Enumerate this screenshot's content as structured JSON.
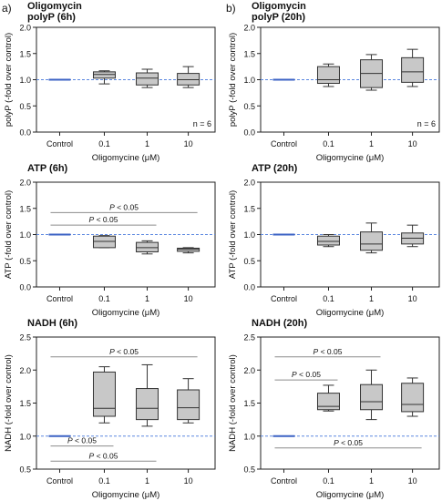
{
  "panel_letters": [
    "a)",
    "b)"
  ],
  "chart_data": [
    {
      "type": "box",
      "title_lines": [
        "Oligomycin",
        "polyP (6h)"
      ],
      "xlabel": "Oligomycine (μM)",
      "ylabel": "polyP (-fold over control)",
      "categories": [
        "Control",
        "0.1",
        "1",
        "10"
      ],
      "ylim": [
        0,
        2.0
      ],
      "yticks": [
        "0.0",
        "0.5",
        "1.0",
        "1.5",
        "2.0"
      ],
      "reference_line": 1.0,
      "annotation": "n = 6",
      "boxes": [
        {
          "category": "Control",
          "min": 1.0,
          "q1": 1.0,
          "median": 1.0,
          "q3": 1.0,
          "max": 1.0
        },
        {
          "category": "0.1",
          "min": 0.92,
          "q1": 1.03,
          "median": 1.1,
          "q3": 1.15,
          "max": 1.17
        },
        {
          "category": "1",
          "min": 0.85,
          "q1": 0.9,
          "median": 1.03,
          "q3": 1.13,
          "max": 1.2
        },
        {
          "category": "10",
          "min": 0.85,
          "q1": 0.9,
          "median": 1.0,
          "q3": 1.12,
          "max": 1.25
        }
      ],
      "significance": []
    },
    {
      "type": "box",
      "title_lines": [
        "Oligomycin",
        "polyP  (20h)"
      ],
      "xlabel": "Oligomycine (μM)",
      "ylabel": "polyP (-fold over control)",
      "categories": [
        "Control",
        "0.1",
        "1",
        "10"
      ],
      "ylim": [
        0,
        2.0
      ],
      "yticks": [
        "0.0",
        "0.5",
        "1.0",
        "1.5",
        "2.0"
      ],
      "reference_line": 1.0,
      "annotation": "n = 6",
      "boxes": [
        {
          "category": "Control",
          "min": 1.0,
          "q1": 1.0,
          "median": 1.0,
          "q3": 1.0,
          "max": 1.0
        },
        {
          "category": "0.1",
          "min": 0.87,
          "q1": 0.93,
          "median": 1.0,
          "q3": 1.25,
          "max": 1.3
        },
        {
          "category": "1",
          "min": 0.8,
          "q1": 0.85,
          "median": 1.12,
          "q3": 1.38,
          "max": 1.48
        },
        {
          "category": "10",
          "min": 0.87,
          "q1": 0.95,
          "median": 1.15,
          "q3": 1.42,
          "max": 1.58
        }
      ],
      "significance": []
    },
    {
      "type": "box",
      "title_lines": [
        "ATP (6h)"
      ],
      "xlabel": "Oligomycine (μM)",
      "ylabel": "ATP (-fold over control)",
      "categories": [
        "Control",
        "0.1",
        "1",
        "10"
      ],
      "ylim": [
        0,
        2.0
      ],
      "yticks": [
        "0.0",
        "0.5",
        "1.0",
        "1.5",
        "2.0"
      ],
      "reference_line": 1.0,
      "annotation": "",
      "boxes": [
        {
          "category": "Control",
          "min": 1.0,
          "q1": 1.0,
          "median": 1.0,
          "q3": 1.0,
          "max": 1.0
        },
        {
          "category": "0.1",
          "min": 0.75,
          "q1": 0.75,
          "median": 0.87,
          "q3": 0.97,
          "max": 0.98
        },
        {
          "category": "1",
          "min": 0.63,
          "q1": 0.67,
          "median": 0.75,
          "q3": 0.85,
          "max": 0.88
        },
        {
          "category": "10",
          "min": 0.65,
          "q1": 0.68,
          "median": 0.72,
          "q3": 0.74,
          "max": 0.75
        }
      ],
      "significance": [
        {
          "from": "Control",
          "to": "10",
          "y": 1.42,
          "label": "P < 0.05"
        },
        {
          "from": "Control",
          "to": "1",
          "y": 1.18,
          "label": "P < 0.05"
        }
      ]
    },
    {
      "type": "box",
      "title_lines": [
        "ATP (20h)"
      ],
      "xlabel": "Oligomycine (μM)",
      "ylabel": "ATP (-fold over control)",
      "categories": [
        "Control",
        "0.1",
        "1",
        "10"
      ],
      "ylim": [
        0,
        2.0
      ],
      "yticks": [
        "0.0",
        "0.5",
        "1.0",
        "1.5",
        "2.0"
      ],
      "reference_line": 1.0,
      "annotation": "",
      "boxes": [
        {
          "category": "Control",
          "min": 1.0,
          "q1": 1.0,
          "median": 1.0,
          "q3": 1.0,
          "max": 1.0
        },
        {
          "category": "0.1",
          "min": 0.77,
          "q1": 0.8,
          "median": 0.87,
          "q3": 0.97,
          "max": 1.0
        },
        {
          "category": "1",
          "min": 0.65,
          "q1": 0.7,
          "median": 0.82,
          "q3": 1.05,
          "max": 1.22
        },
        {
          "category": "10",
          "min": 0.77,
          "q1": 0.82,
          "median": 0.93,
          "q3": 1.03,
          "max": 1.18
        }
      ],
      "significance": []
    },
    {
      "type": "box",
      "title_lines": [
        "NADH (6h)"
      ],
      "xlabel": "Oligomycine (μM)",
      "ylabel": "NADH (-fold over control)",
      "categories": [
        "Control",
        "0.1",
        "1",
        "10"
      ],
      "ylim": [
        0.5,
        2.5
      ],
      "yticks": [
        "0.5",
        "1.0",
        "1.5",
        "2.0",
        "2.5"
      ],
      "reference_line": 1.0,
      "annotation": "",
      "boxes": [
        {
          "category": "Control",
          "min": 1.0,
          "q1": 1.0,
          "median": 1.0,
          "q3": 1.0,
          "max": 1.0
        },
        {
          "category": "0.1",
          "min": 1.2,
          "q1": 1.3,
          "median": 1.42,
          "q3": 1.97,
          "max": 2.05
        },
        {
          "category": "1",
          "min": 1.15,
          "q1": 1.25,
          "median": 1.42,
          "q3": 1.72,
          "max": 2.08
        },
        {
          "category": "10",
          "min": 1.2,
          "q1": 1.25,
          "median": 1.43,
          "q3": 1.7,
          "max": 1.87
        }
      ],
      "significance": [
        {
          "from": "Control",
          "to": "10",
          "y": 2.2,
          "label": "P < 0.05"
        },
        {
          "from": "Control",
          "to": "0.1",
          "y": 0.85,
          "label": "P < 0.05"
        },
        {
          "from": "Control",
          "to": "1",
          "y": 0.62,
          "label": "P < 0.05"
        }
      ]
    },
    {
      "type": "box",
      "title_lines": [
        "NADH (20h)"
      ],
      "xlabel": "Oligomycine (μM)",
      "ylabel": "NADH (-fold over control)",
      "categories": [
        "Control",
        "0.1",
        "1",
        "10"
      ],
      "ylim": [
        0.5,
        2.5
      ],
      "yticks": [
        "0.5",
        "1.0",
        "1.5",
        "2.0",
        "2.5"
      ],
      "reference_line": 1.0,
      "annotation": "",
      "boxes": [
        {
          "category": "Control",
          "min": 1.0,
          "q1": 1.0,
          "median": 1.0,
          "q3": 1.0,
          "max": 1.0
        },
        {
          "category": "0.1",
          "min": 1.38,
          "q1": 1.4,
          "median": 1.45,
          "q3": 1.65,
          "max": 1.77
        },
        {
          "category": "1",
          "min": 1.25,
          "q1": 1.4,
          "median": 1.52,
          "q3": 1.78,
          "max": 2.0
        },
        {
          "category": "10",
          "min": 1.3,
          "q1": 1.37,
          "median": 1.48,
          "q3": 1.8,
          "max": 1.88
        }
      ],
      "significance": [
        {
          "from": "Control",
          "to": "1",
          "y": 2.2,
          "label": "P < 0.05"
        },
        {
          "from": "Control",
          "to": "0.1",
          "y": 1.85,
          "label": "P < 0.05"
        },
        {
          "from": "Control",
          "to": "10",
          "y": 0.82,
          "label": "P < 0.05"
        }
      ]
    }
  ],
  "colors": {
    "box_fill": "#c8c8c8",
    "box_stroke": "#333333",
    "control_line": "#3b62c4",
    "reference_line": "#5b87e0",
    "significance_line": "#8c8c8c"
  }
}
